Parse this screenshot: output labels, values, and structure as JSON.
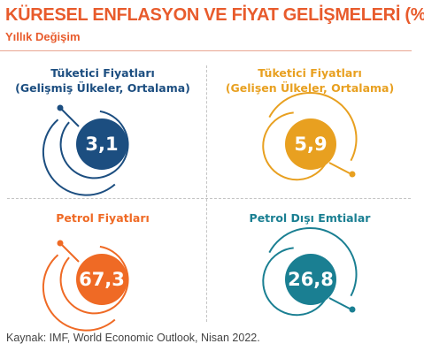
{
  "header": {
    "title": "KÜRESEL ENFLASYON VE FİYAT GELİŞMELERİ (%)",
    "subtitle": "Yıllık Değişim"
  },
  "colors": {
    "title": "#e85b2c",
    "navy": "#1c4e80",
    "amber": "#e8a020",
    "orange": "#ef6a25",
    "teal": "#1a7f92",
    "divider": "#c4c4c4",
    "source_text": "#444444"
  },
  "chart_data": {
    "type": "table",
    "panels": [
      {
        "title_lines": [
          "Tüketici Fiyatları",
          "(Gelişmiş Ülkeler, Ortalama)"
        ],
        "value": 3.1,
        "label": "3,1",
        "color": "#1c4e80"
      },
      {
        "title_lines": [
          "Tüketici Fiyatları",
          "(Gelişen Ülkeler, Ortalama)"
        ],
        "value": 5.9,
        "label": "5,9",
        "color": "#e8a020"
      },
      {
        "title_lines": [
          "Petrol Fiyatları"
        ],
        "value": 67.3,
        "label": "67,3",
        "color": "#ef6a25"
      },
      {
        "title_lines": [
          "Petrol Dışı Emtialar"
        ],
        "value": 26.8,
        "label": "26,8",
        "color": "#1a7f92"
      }
    ]
  },
  "source": "Kaynak: IMF, World Economic Outlook, Nisan 2022."
}
